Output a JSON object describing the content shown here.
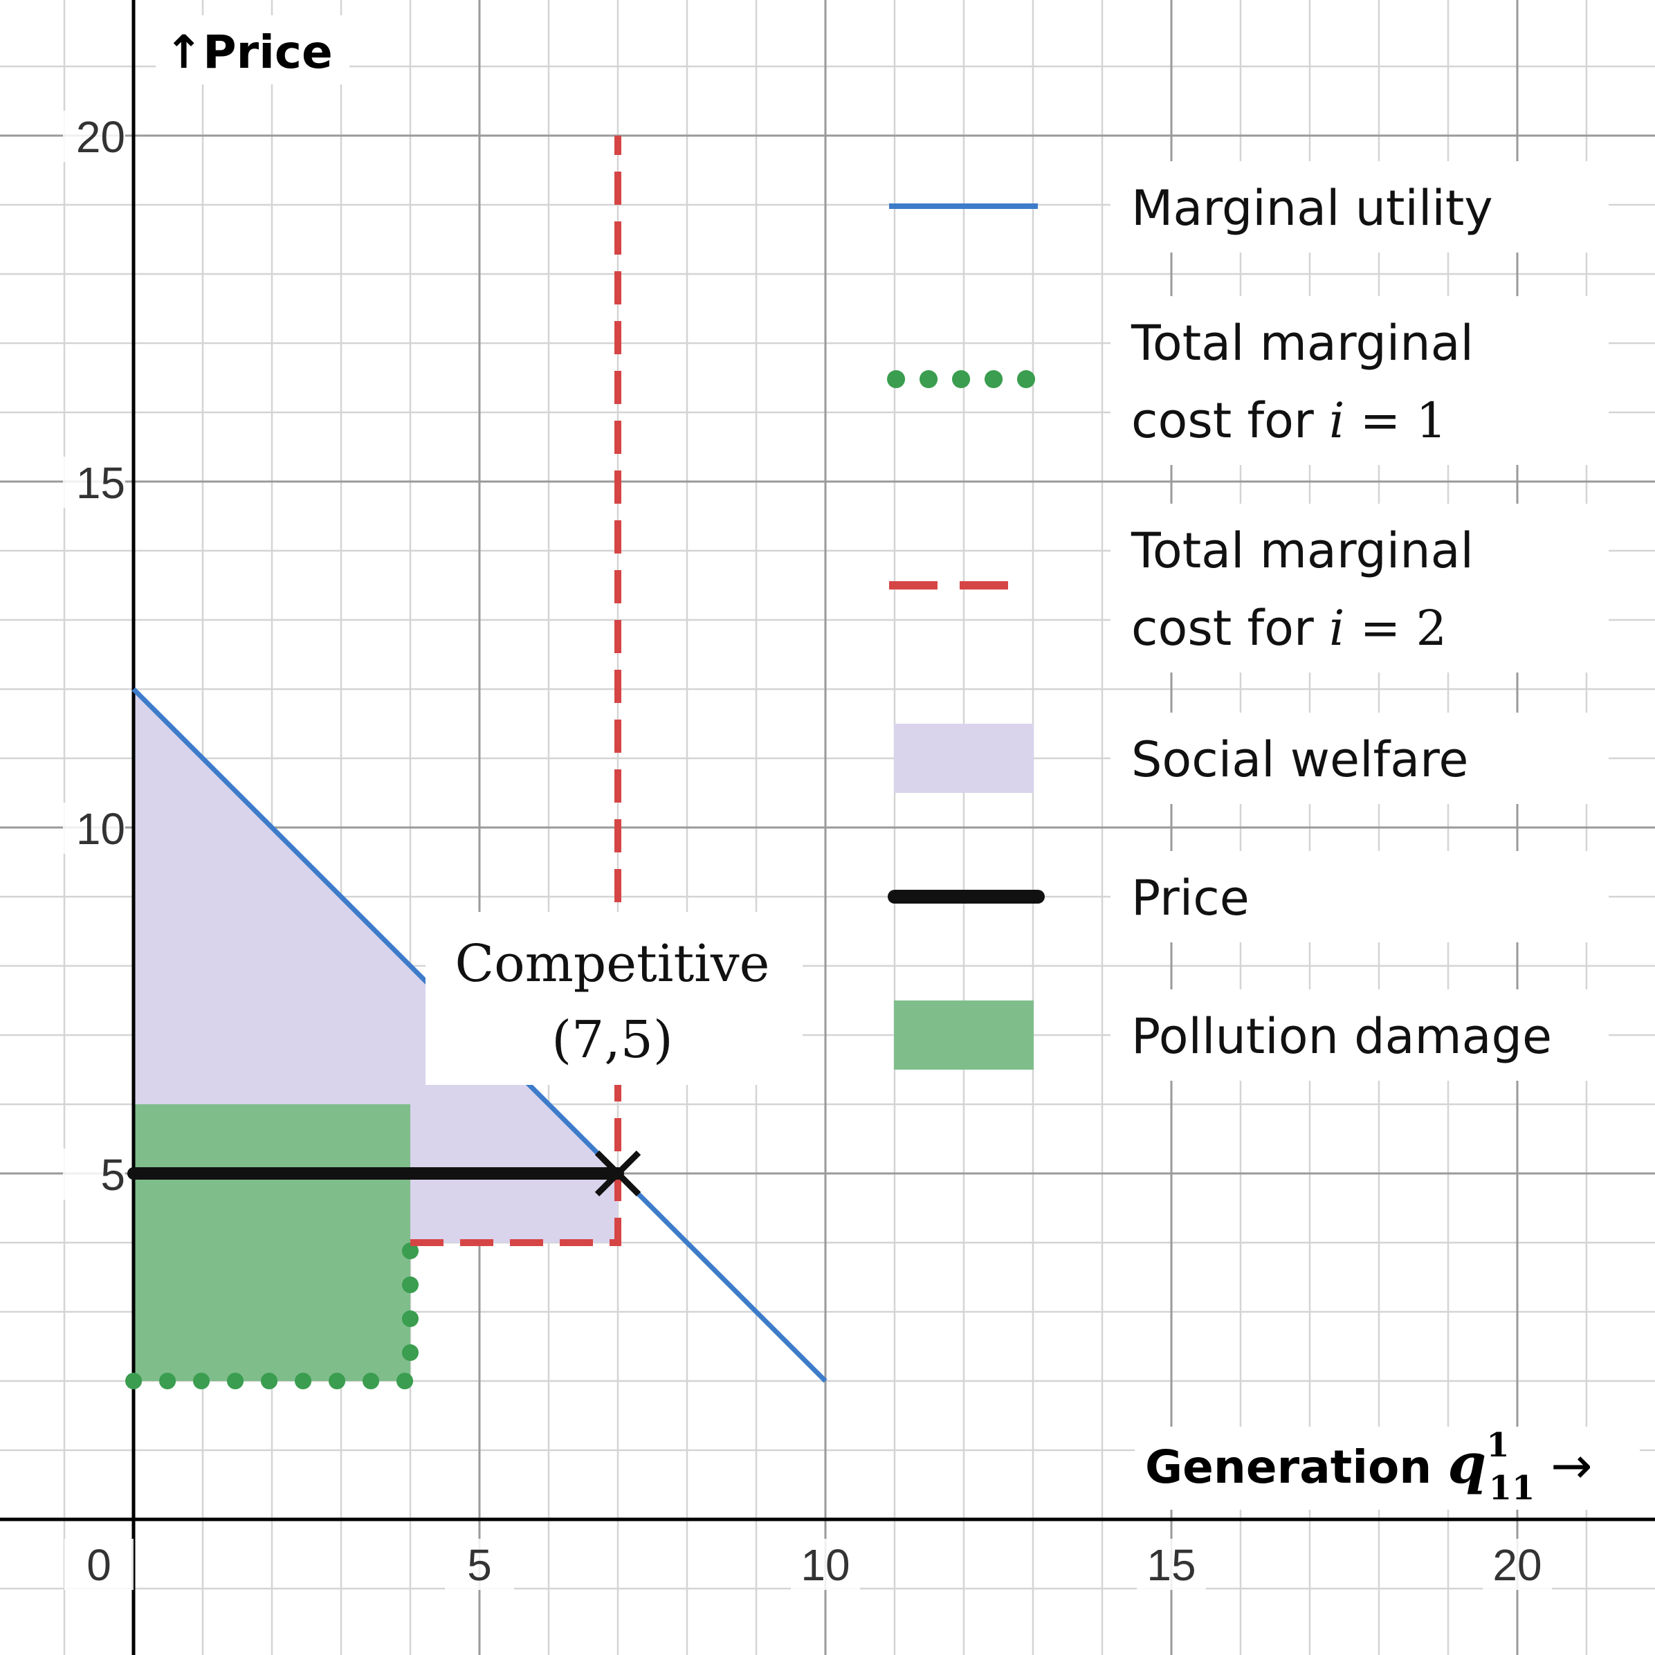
{
  "chart_data": {
    "type": "line",
    "title": "",
    "ylabel": "↑Price",
    "xlabel_text": "Generation ",
    "xlabel_symbol": "q",
    "xlabel_sup": "1",
    "xlabel_sub": "11",
    "xlabel_arrow": " →",
    "xlim": [
      0,
      22
    ],
    "ylim": [
      -2,
      22
    ],
    "x_ticks": [
      0,
      5,
      10,
      15,
      20
    ],
    "y_ticks": [
      5,
      10,
      15,
      20
    ],
    "grid": true,
    "legend_position": "top-right",
    "colors": {
      "marginal_utility": "#3d7cc9",
      "tmc1": "#3a9d4f",
      "tmc2": "#d64545",
      "social_welfare": "#d9d3ec",
      "price": "#111111",
      "pollution": "#7fbd8b"
    },
    "series": [
      {
        "key": "marginal_utility",
        "name": "Marginal utility",
        "style": "solid",
        "x": [
          0,
          10
        ],
        "y": [
          12,
          2
        ]
      },
      {
        "key": "tmc1",
        "name": "Total marginal cost for i = 1",
        "style": "dotted",
        "x": [
          0,
          4,
          4
        ],
        "y": [
          2,
          2,
          4
        ]
      },
      {
        "key": "tmc2",
        "name": "Total marginal cost for i = 2",
        "style": "dashed",
        "x": [
          4,
          7,
          7
        ],
        "y": [
          4,
          4,
          20
        ]
      },
      {
        "key": "price",
        "name": "Price",
        "style": "solid-thick",
        "x": [
          0,
          7
        ],
        "y": [
          5,
          5
        ]
      }
    ],
    "areas": [
      {
        "key": "social_welfare",
        "name": "Social welfare",
        "x": [
          0,
          7,
          7,
          4,
          4,
          0
        ],
        "y": [
          12,
          5,
          4,
          4,
          6,
          6
        ]
      },
      {
        "key": "pollution",
        "name": "Pollution damage",
        "x": [
          0,
          4,
          4,
          0
        ],
        "y": [
          6,
          6,
          2,
          2
        ]
      }
    ],
    "annotations": [
      {
        "text_line1": "Competitive",
        "text_line2": "(7,5)",
        "x": 7,
        "y": 5,
        "marker": "×"
      }
    ],
    "legend": [
      {
        "key": "marginal_utility",
        "lines": [
          "Marginal utility"
        ]
      },
      {
        "key": "tmc1",
        "lines": [
          "Total marginal",
          "cost for "
        ],
        "math": "i",
        "math_rest": " = 1"
      },
      {
        "key": "tmc2",
        "lines": [
          "Total marginal",
          "cost for "
        ],
        "math": "i",
        "math_rest": " = 2"
      },
      {
        "key": "social_welfare",
        "lines": [
          "Social welfare"
        ]
      },
      {
        "key": "price",
        "lines": [
          "Price"
        ]
      },
      {
        "key": "pollution",
        "lines": [
          "Pollution damage"
        ]
      }
    ]
  }
}
